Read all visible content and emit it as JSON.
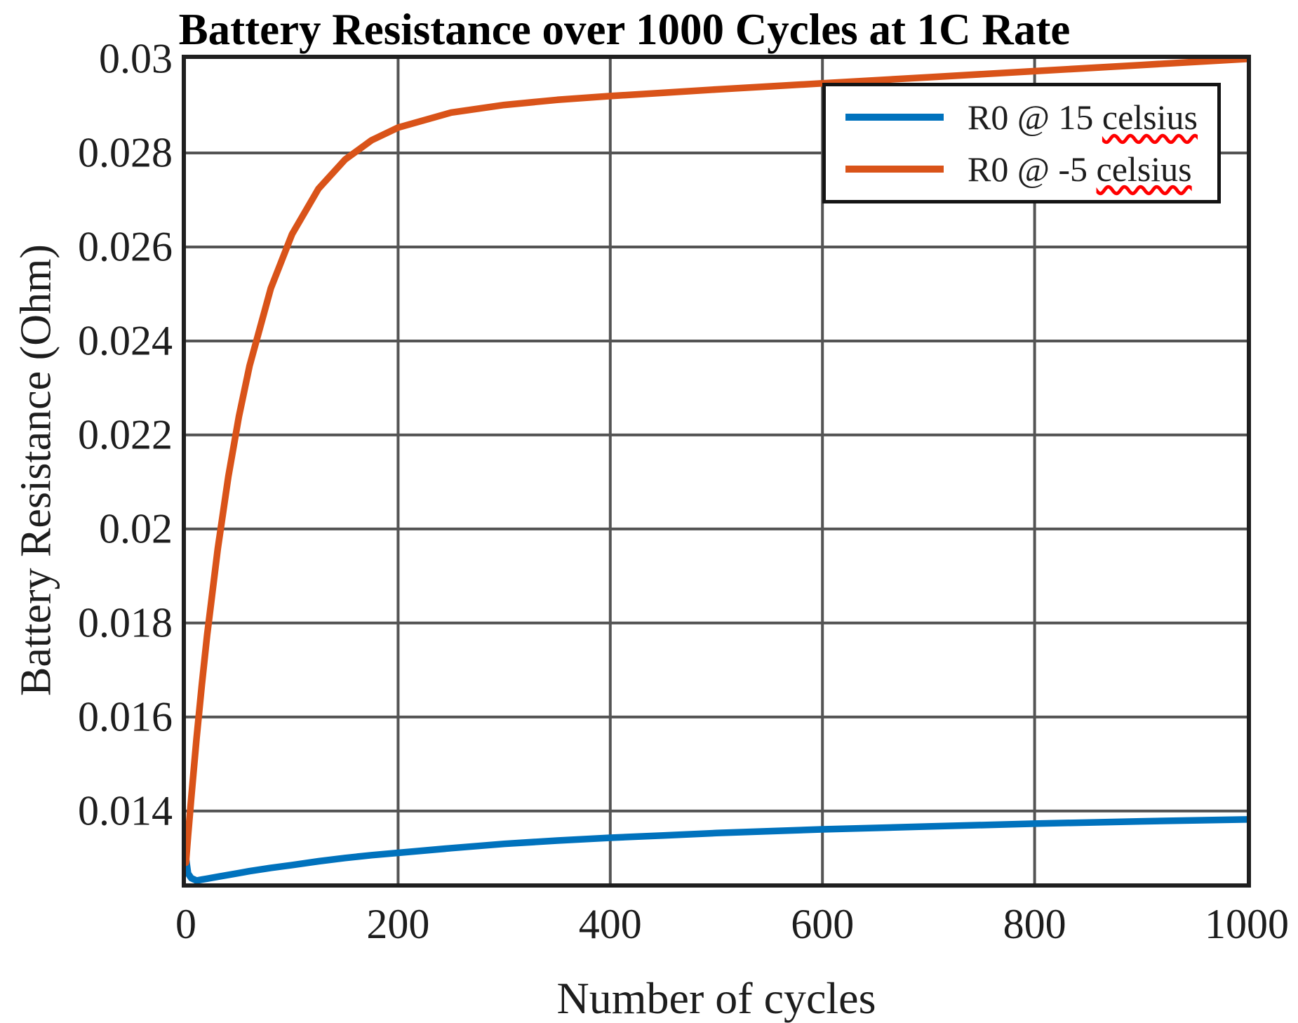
{
  "figure": {
    "title": "Battery Resistance over 1000 Cycles at 1C Rate",
    "xlabel": "Number of cycles",
    "ylabel": "Battery Resistance (Ohm)"
  },
  "legend": {
    "entries": [
      {
        "prefix": "R0 @ 15 ",
        "word": "celsius",
        "color": "#0072BD"
      },
      {
        "prefix": "R0 @ -5 ",
        "word": "celsius",
        "color": "#D95319"
      }
    ]
  },
  "colors": {
    "blue": "#0072BD",
    "orange": "#D95319",
    "grid": "#545454",
    "frame": "#1f1f1f",
    "squiggle": "#ff0000"
  },
  "chart_data": {
    "type": "line",
    "title": "Battery Resistance over 1000 Cycles at 1C Rate",
    "xlabel": "Number of cycles",
    "ylabel": "Battery Resistance (Ohm)",
    "xlim": [
      0,
      1000
    ],
    "ylim": [
      0.01246,
      0.03
    ],
    "grid": true,
    "legend_position": "top-right",
    "xticks": [
      {
        "value": 0,
        "label": "0"
      },
      {
        "value": 200,
        "label": "200"
      },
      {
        "value": 400,
        "label": "400"
      },
      {
        "value": 600,
        "label": "600"
      },
      {
        "value": 800,
        "label": "800"
      },
      {
        "value": 1000,
        "label": "1000"
      }
    ],
    "yticks": [
      {
        "value": 0.03,
        "label": "0.03"
      },
      {
        "value": 0.028,
        "label": "0.028"
      },
      {
        "value": 0.026,
        "label": "0.026"
      },
      {
        "value": 0.024,
        "label": "0.024"
      },
      {
        "value": 0.022,
        "label": "0.022"
      },
      {
        "value": 0.02,
        "label": "0.02"
      },
      {
        "value": 0.018,
        "label": "0.018"
      },
      {
        "value": 0.016,
        "label": "0.016"
      },
      {
        "value": 0.014,
        "label": "0.014"
      }
    ],
    "series": [
      {
        "name": "R0 @ 15 celsius",
        "color": "#0072BD",
        "x": [
          0,
          2,
          5,
          10,
          15,
          20,
          30,
          40,
          50,
          60,
          80,
          100,
          125,
          150,
          175,
          200,
          250,
          300,
          350,
          400,
          450,
          500,
          600,
          700,
          800,
          900,
          1000
        ],
        "y": [
          0.013,
          0.01267,
          0.01257,
          0.01252,
          0.01254,
          0.01256,
          0.0126,
          0.01264,
          0.01268,
          0.01272,
          0.01279,
          0.01285,
          0.01293,
          0.013,
          0.01306,
          0.01311,
          0.01321,
          0.0133,
          0.01337,
          0.01343,
          0.01348,
          0.01353,
          0.01361,
          0.01367,
          0.01373,
          0.01378,
          0.01382
        ]
      },
      {
        "name": "R0 @ -5 celsius",
        "color": "#D95319",
        "x": [
          0,
          2,
          5,
          10,
          15,
          20,
          30,
          40,
          50,
          60,
          80,
          100,
          125,
          150,
          175,
          200,
          250,
          300,
          350,
          400,
          450,
          500,
          600,
          700,
          800,
          900,
          1000
        ],
        "y": [
          0.0129,
          0.01347,
          0.01428,
          0.01554,
          0.01669,
          0.01774,
          0.01958,
          0.02112,
          0.0224,
          0.02347,
          0.02512,
          0.02627,
          0.02724,
          0.02786,
          0.02827,
          0.02854,
          0.02886,
          0.02902,
          0.02913,
          0.02921,
          0.02928,
          0.02935,
          0.02948,
          0.02961,
          0.02974,
          0.02987,
          0.03
        ]
      }
    ]
  }
}
